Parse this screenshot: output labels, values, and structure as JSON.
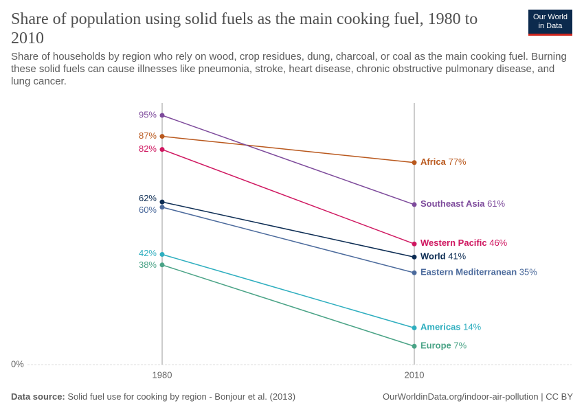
{
  "chart_data": {
    "type": "slope",
    "title": "Share of population using solid fuels as the main cooking fuel, 1980 to 2010",
    "subtitle": "Share of households by region who rely on wood, crop residues, dung, charcoal, or coal as the main cooking fuel. Burning these solid fuels can cause illnesses like pneumonia, stroke, heart disease, chronic obstructive pulmonary disease, and lung cancer.",
    "logo": [
      "Our World",
      "in Data"
    ],
    "categories": [
      "1980",
      "2010"
    ],
    "ylim": [
      0,
      95
    ],
    "yticks": [
      {
        "value": 0,
        "label": "0%"
      }
    ],
    "series": [
      {
        "name": "Africa",
        "color": "#b9581d",
        "values": [
          87,
          77
        ],
        "value_labels": [
          "87%",
          "77%"
        ]
      },
      {
        "name": "Southeast Asia",
        "color": "#7d4a9b",
        "values": [
          95,
          61
        ],
        "value_labels": [
          "95%",
          "61%"
        ]
      },
      {
        "name": "Western Pacific",
        "color": "#cf1760",
        "values": [
          82,
          46
        ],
        "value_labels": [
          "82%",
          "46%"
        ]
      },
      {
        "name": "World",
        "color": "#0c2c53",
        "values": [
          62,
          41
        ],
        "value_labels": [
          "62%",
          "41%"
        ]
      },
      {
        "name": "Eastern Mediterranean",
        "color": "#4b6a9c",
        "values": [
          60,
          35
        ],
        "value_labels": [
          "60%",
          "35%"
        ]
      },
      {
        "name": "Americas",
        "color": "#2eaebf",
        "values": [
          42,
          14
        ],
        "value_labels": [
          "42%",
          "14%"
        ]
      },
      {
        "name": "Europe",
        "color": "#4aa386",
        "values": [
          38,
          7
        ],
        "value_labels": [
          "38%",
          "7%"
        ]
      }
    ],
    "source_label": "Data source:",
    "source": "Solid fuel use for cooking by region - Bonjour et al. (2013)",
    "url": "OurWorldinData.org/indoor-air-pollution | CC BY"
  }
}
